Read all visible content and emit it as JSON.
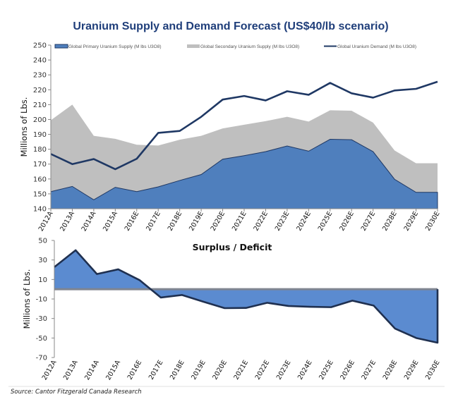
{
  "chart_data": [
    {
      "type": "area",
      "title": "Uranium Supply and Demand Forecast (US$40/lb scenario)",
      "ylabel": "Millions of Lbs.",
      "ylim": [
        140,
        250
      ],
      "yticks": [
        140,
        150,
        160,
        170,
        180,
        190,
        200,
        210,
        220,
        230,
        240,
        250
      ],
      "categories": [
        "2012A",
        "2013A",
        "2014A",
        "2015A",
        "2016E",
        "2017E",
        "2018E",
        "2019E",
        "2020E",
        "2021E",
        "2022E",
        "2023E",
        "2024E",
        "2025E",
        "2026E",
        "2027E",
        "2028E",
        "2029E",
        "2030E"
      ],
      "legend_position": "top",
      "grid": false,
      "series": [
        {
          "name": "Global Primary Uranium Supply (M lbs U3O8)",
          "kind": "stacked-area",
          "color": "#4f7fbd",
          "values": [
            151.5,
            155,
            146,
            154.4,
            151.5,
            154.7,
            159,
            163,
            173.3,
            175.7,
            178.4,
            182.2,
            178.7,
            186.7,
            186.4,
            178.4,
            159.8,
            151,
            151
          ]
        },
        {
          "name": "Global Secondary Uranium Supply (M lbs U3O8)",
          "kind": "stacked-area",
          "color": "#bfbfbf",
          "values": [
            48,
            55,
            43,
            32.6,
            31.5,
            27.8,
            27.4,
            26,
            20.7,
            20.8,
            20.5,
            19.6,
            19.9,
            19.5,
            19.5,
            19.5,
            19.4,
            19.6,
            19.6
          ]
        },
        {
          "name": "Global Uranium Demand (M lbs U3O8)",
          "kind": "line",
          "color": "#1f3864",
          "values": [
            176.8,
            170,
            173.4,
            166.6,
            173.6,
            191,
            192.3,
            201.8,
            213.4,
            215.8,
            212.8,
            219,
            216.6,
            224.6,
            217.6,
            214.7,
            219.5,
            220.6,
            225.4
          ]
        }
      ]
    },
    {
      "type": "area",
      "title": "Surplus / Deficit",
      "ylabel": "Millions of Lbs.",
      "ylim": [
        -70,
        50
      ],
      "yticks": [
        -70,
        -50,
        -30,
        -10,
        10,
        30,
        50
      ],
      "categories": [
        "2012A",
        "2013A",
        "2014A",
        "2015A",
        "2016E",
        "2017E",
        "2018E",
        "2019E",
        "2020E",
        "2021E",
        "2022E",
        "2023E",
        "2024E",
        "2025E",
        "2026E",
        "2027E",
        "2028E",
        "2029E",
        "2030E"
      ],
      "grid": false,
      "fill_color": "#5b8bd0",
      "line_color": "#1f3050",
      "values": [
        22.7,
        40,
        15.6,
        20.4,
        9.4,
        -8.5,
        -5.9,
        -12.8,
        -19.4,
        -19.2,
        -13.9,
        -17.2,
        -18,
        -18.4,
        -11.7,
        -16.8,
        -40.3,
        -50,
        -54.8
      ]
    }
  ],
  "source": "Source: Cantor Fitzgerald Canada Research"
}
